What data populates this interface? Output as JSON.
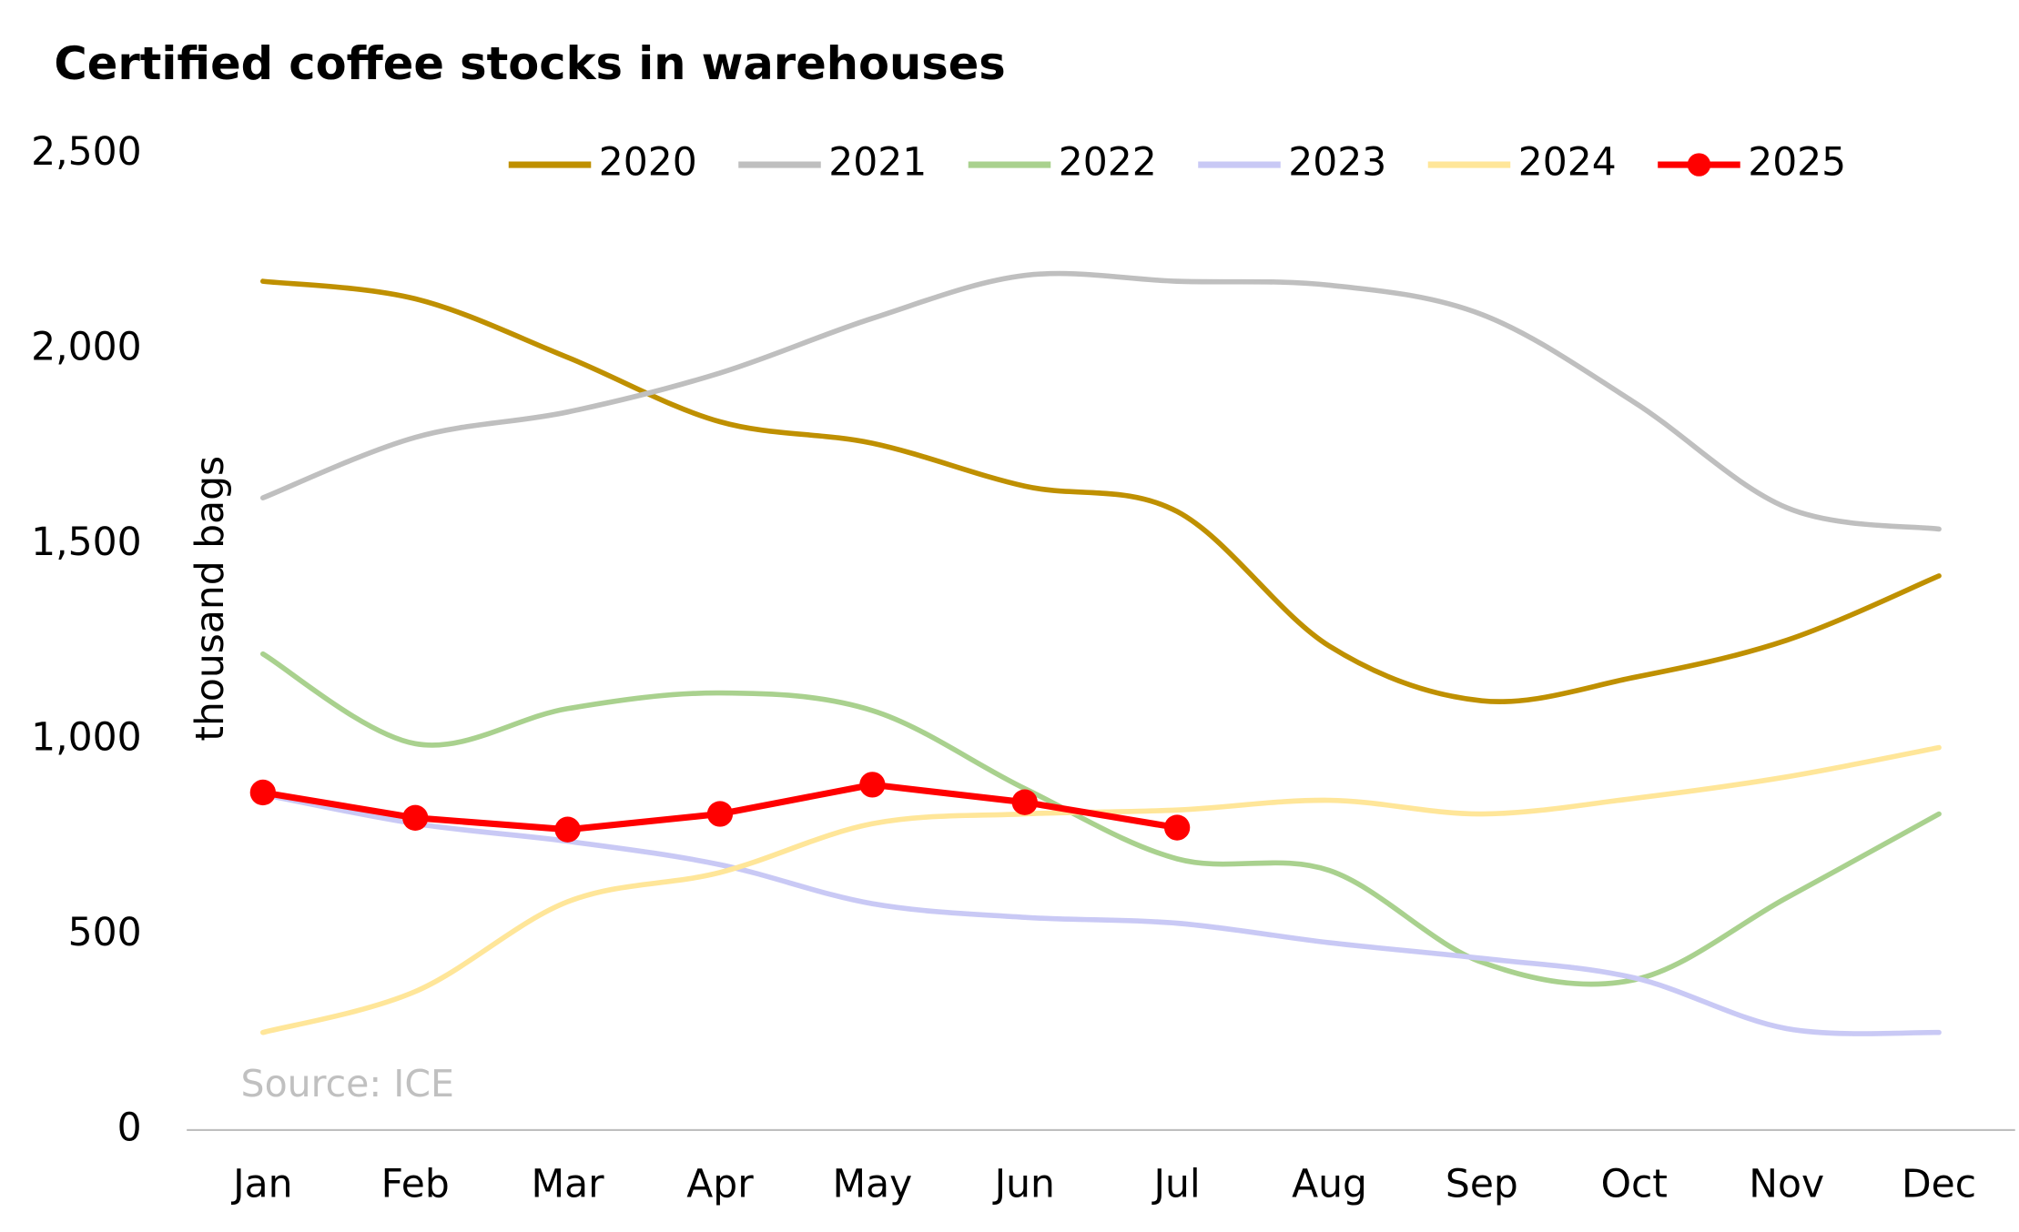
{
  "chart_data": {
    "type": "line",
    "title": "Certified coffee stocks in warehouses",
    "y_label": "thousand bags",
    "annotation": "Source: ICE",
    "categories": [
      "Jan",
      "Feb",
      "Mar",
      "Apr",
      "May",
      "Jun",
      "Jul",
      "Aug",
      "Sep",
      "Oct",
      "Nov",
      "Dec"
    ],
    "series": [
      {
        "name": "2020",
        "color": "#bf9000",
        "smooth": true,
        "values": [
          2175,
          2130,
          1980,
          1815,
          1760,
          1650,
          1585,
          1240,
          1100,
          1160,
          1255,
          1420
        ]
      },
      {
        "name": "2021",
        "color": "#bfbfbf",
        "smooth": true,
        "values": [
          1620,
          1775,
          1840,
          1940,
          2080,
          2190,
          2175,
          2165,
          2090,
          1865,
          1595,
          1540
        ]
      },
      {
        "name": "2022",
        "color": "#a9d18e",
        "smooth": true,
        "values": [
          1220,
          990,
          1080,
          1120,
          1075,
          875,
          695,
          665,
          430,
          385,
          595,
          810
        ]
      },
      {
        "name": "2023",
        "color": "#c9c9f5",
        "smooth": true,
        "values": [
          860,
          785,
          740,
          680,
          580,
          545,
          530,
          480,
          440,
          390,
          260,
          250
        ]
      },
      {
        "name": "2024",
        "color": "#ffe699",
        "smooth": true,
        "values": [
          250,
          355,
          585,
          660,
          785,
          810,
          820,
          845,
          810,
          850,
          905,
          980
        ]
      },
      {
        "name": "2025",
        "color": "#ff0000",
        "smooth": false,
        "markers": true,
        "values": [
          865,
          800,
          770,
          810,
          885,
          840,
          775,
          null,
          null,
          null,
          null,
          null
        ]
      }
    ],
    "ylim": [
      0,
      2500
    ],
    "yticks": [
      0,
      500,
      {
        "value": 1000,
        "label": "1,000"
      },
      {
        "value": 1500,
        "label": "1,500"
      },
      {
        "value": 2000,
        "label": "2,000"
      },
      {
        "value": 2500,
        "label": "2,500"
      }
    ],
    "grid": false,
    "legend": "top"
  }
}
